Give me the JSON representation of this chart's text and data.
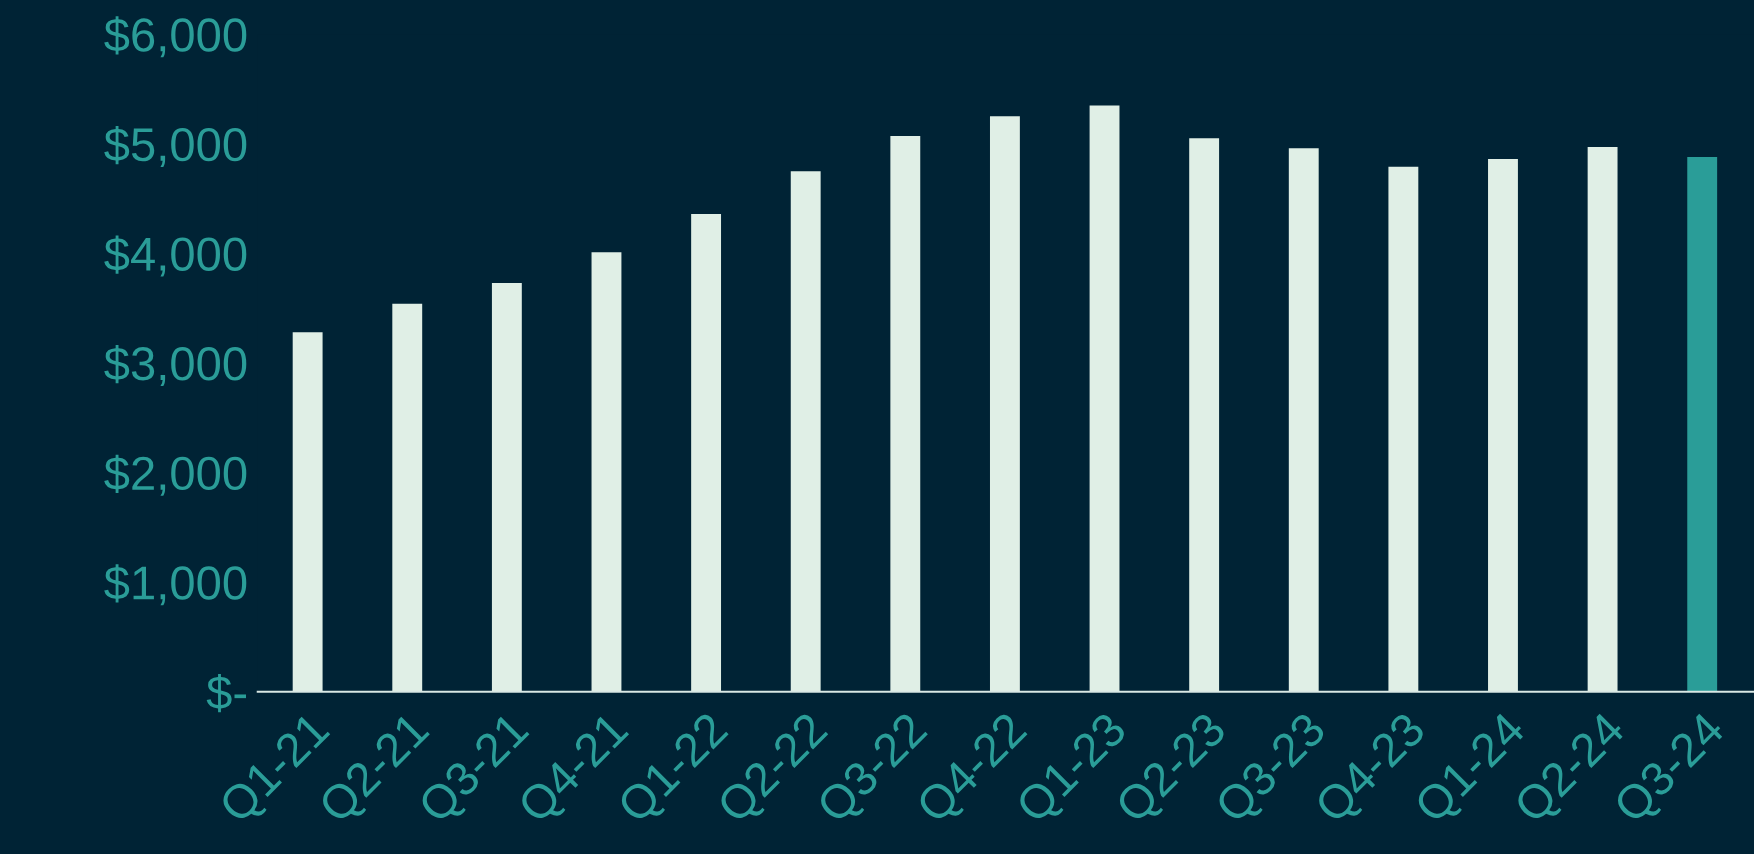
{
  "chart_data": {
    "type": "bar",
    "categories": [
      "Q1-21",
      "Q2-21",
      "Q3-21",
      "Q4-21",
      "Q1-22",
      "Q2-22",
      "Q3-22",
      "Q4-22",
      "Q1-23",
      "Q2-23",
      "Q3-23",
      "Q4-23",
      "Q1-24",
      "Q2-24",
      "Q3-24"
    ],
    "values": [
      3280,
      3540,
      3730,
      4010,
      4360,
      4750,
      5070,
      5250,
      5350,
      5050,
      4960,
      4790,
      4860,
      4970,
      4880
    ],
    "colors": [
      "#e0efe6",
      "#e0efe6",
      "#e0efe6",
      "#e0efe6",
      "#e0efe6",
      "#e0efe6",
      "#e0efe6",
      "#e0efe6",
      "#e0efe6",
      "#e0efe6",
      "#e0efe6",
      "#e0efe6",
      "#e0efe6",
      "#e0efe6",
      "#2a9d98"
    ],
    "ylim": [
      0,
      6000
    ],
    "yticks": [
      {
        "value": 0,
        "label": "$-"
      },
      {
        "value": 1000,
        "label": "$1,000"
      },
      {
        "value": 2000,
        "label": "$2,000"
      },
      {
        "value": 3000,
        "label": "$3,000"
      },
      {
        "value": 4000,
        "label": "$4,000"
      },
      {
        "value": 5000,
        "label": "$5,000"
      },
      {
        "value": 6000,
        "label": "$6,000"
      }
    ],
    "grid": false
  }
}
